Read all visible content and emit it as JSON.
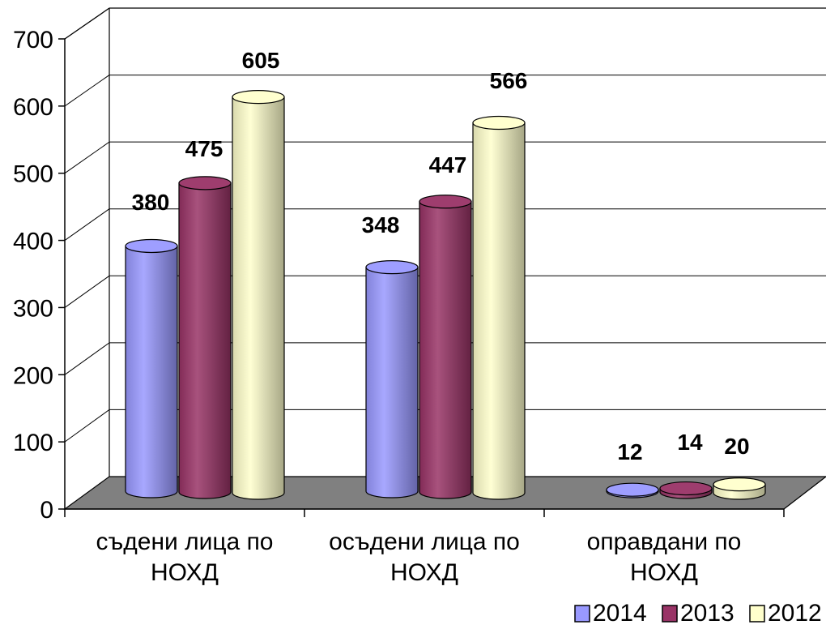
{
  "chart_data": {
    "type": "bar",
    "title": "",
    "xlabel": "",
    "ylabel": "",
    "ylim": [
      0,
      700
    ],
    "yticks": [
      0,
      100,
      200,
      300,
      400,
      500,
      600,
      700
    ],
    "categories": [
      [
        "съдени лица по",
        "НОХД"
      ],
      [
        "осъдени лица по",
        "НОХД"
      ],
      [
        "оправдани по",
        "НОХД"
      ]
    ],
    "series": [
      {
        "name": "2014",
        "color": "#9999ff",
        "values": [
          380,
          348,
          12
        ]
      },
      {
        "name": "2013",
        "color": "#993366",
        "values": [
          475,
          447,
          14
        ]
      },
      {
        "name": "2012",
        "color": "#ffffcc",
        "values": [
          605,
          566,
          20
        ]
      }
    ],
    "grid": true,
    "legend": "bottom-right",
    "floor_color": "#808080",
    "style": "3d-cylinder"
  }
}
